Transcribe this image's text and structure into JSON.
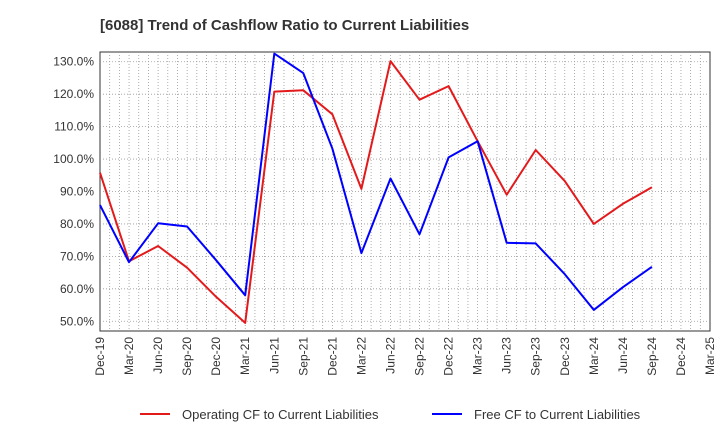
{
  "chart_data": {
    "type": "line",
    "title": "[6088]  Trend of Cashflow Ratio to Current Liabilities",
    "xlabel": "",
    "ylabel": "",
    "categories": [
      "Dec-19",
      "Mar-20",
      "Jun-20",
      "Sep-20",
      "Dec-20",
      "Mar-21",
      "Jun-21",
      "Sep-21",
      "Dec-21",
      "Mar-22",
      "Jun-22",
      "Sep-22",
      "Dec-22",
      "Mar-23",
      "Jun-23",
      "Sep-23",
      "Dec-23",
      "Mar-24",
      "Jun-24",
      "Sep-24",
      "Dec-24",
      "Mar-25"
    ],
    "y_ticks": [
      "50.0%",
      "60.0%",
      "70.0%",
      "80.0%",
      "90.0%",
      "100.0%",
      "110.0%",
      "120.0%",
      "130.0%"
    ],
    "y_tick_values": [
      50,
      60,
      70,
      80,
      90,
      100,
      110,
      120,
      130
    ],
    "ylim": [
      47,
      133
    ],
    "grid": true,
    "legend_position": "bottom",
    "series": [
      {
        "name": "Operating CF to Current Liabilities",
        "color": "#e31a1c",
        "values": [
          95.8,
          68.5,
          73.2,
          66.5,
          57.5,
          49.5,
          120.8,
          121.2,
          113.8,
          90.8,
          130.2,
          118.3,
          122.5,
          105.5,
          89.0,
          102.8,
          93.2,
          80.0,
          86.2,
          91.3,
          null,
          null
        ]
      },
      {
        "name": "Free CF to Current Liabilities",
        "color": "#0000ff",
        "values": [
          85.8,
          68.2,
          80.2,
          79.2,
          68.8,
          58.0,
          132.5,
          126.5,
          103.2,
          71.0,
          94.0,
          76.8,
          100.5,
          105.5,
          74.2,
          74.0,
          64.5,
          53.5,
          60.5,
          66.8,
          null,
          null
        ]
      }
    ]
  }
}
